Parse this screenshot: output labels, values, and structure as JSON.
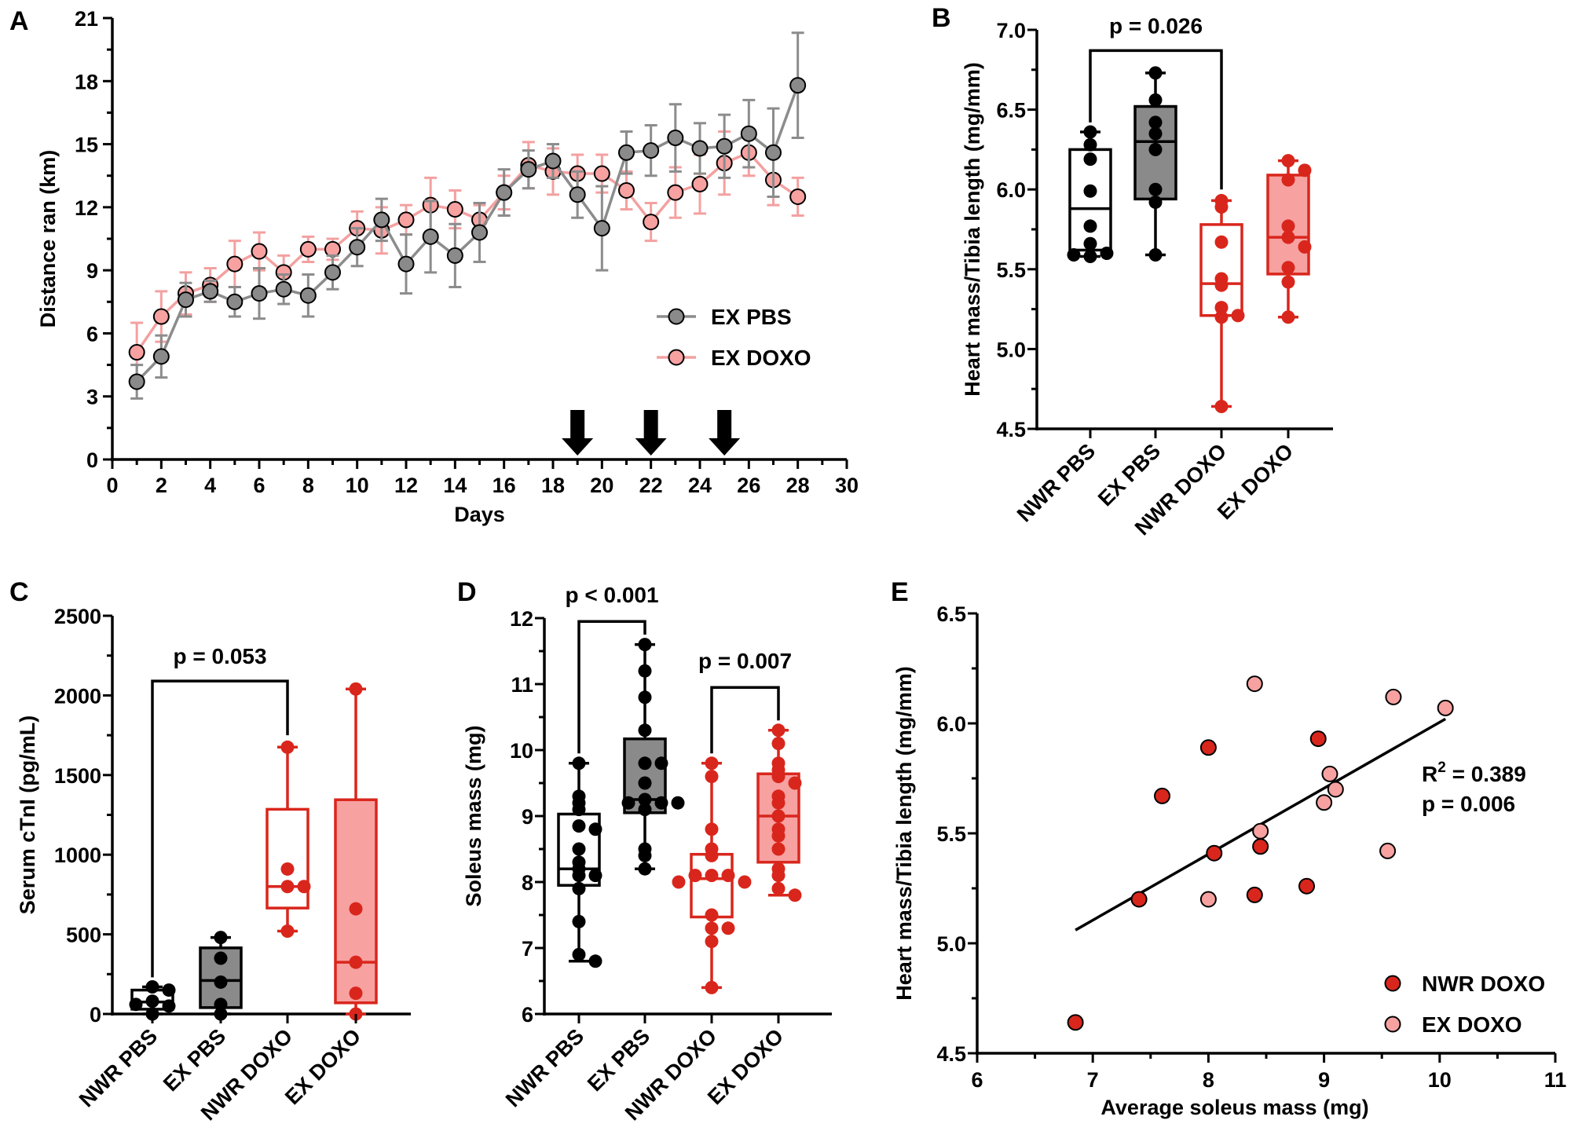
{
  "colors": {
    "black": "#000000",
    "gray": "#8a8a8a",
    "gray_line": "#8c8c8c",
    "pink": "#f7a1a1",
    "pink_line": "#f4a0a0",
    "red": "#d9261c"
  },
  "chart_data": [
    {
      "panel": "A",
      "type": "line",
      "xlabel": "Days",
      "ylabel": "Distance ran (km)",
      "xlim": [
        0,
        30
      ],
      "ylim": [
        0,
        21
      ],
      "xticks": [
        "0",
        "2",
        "4",
        "6",
        "8",
        "10",
        "12",
        "14",
        "16",
        "18",
        "20",
        "22",
        "24",
        "26",
        "28",
        "30"
      ],
      "yticks": [
        "0",
        "3",
        "6",
        "9",
        "12",
        "15",
        "18",
        "21"
      ],
      "legend": "right",
      "x": [
        1,
        2,
        3,
        4,
        5,
        6,
        7,
        8,
        9,
        10,
        11,
        12,
        13,
        14,
        15,
        16,
        17,
        18,
        19,
        20,
        21,
        22,
        23,
        24,
        25,
        26,
        27,
        28
      ],
      "series": [
        {
          "name": "EX PBS",
          "color": "#8a8a8a",
          "values": [
            3.7,
            4.9,
            7.6,
            8.0,
            7.5,
            7.9,
            8.1,
            7.8,
            8.9,
            10.1,
            11.4,
            9.3,
            10.6,
            9.7,
            10.8,
            12.7,
            13.8,
            14.2,
            12.6,
            11.0,
            14.6,
            14.7,
            15.3,
            14.8,
            14.9,
            15.5,
            14.6,
            17.8
          ],
          "errors": [
            0.8,
            1.0,
            0.8,
            0.5,
            0.7,
            1.2,
            0.7,
            1.0,
            0.8,
            0.9,
            1.0,
            1.4,
            1.7,
            1.5,
            1.4,
            1.1,
            0.9,
            0.8,
            1.1,
            2.0,
            1.0,
            1.2,
            1.6,
            1.2,
            1.5,
            1.6,
            2.1,
            2.5
          ]
        },
        {
          "name": "EX DOXO",
          "color": "#f7a1a1",
          "values": [
            5.1,
            6.8,
            7.9,
            8.3,
            9.3,
            9.9,
            8.9,
            10.0,
            10.0,
            11.0,
            10.9,
            11.4,
            12.1,
            11.9,
            11.4,
            12.7,
            14.0,
            13.7,
            13.6,
            13.6,
            12.8,
            11.3,
            12.7,
            13.1,
            14.1,
            14.6,
            13.3,
            12.5
          ],
          "errors": [
            1.4,
            1.2,
            1.0,
            0.8,
            1.1,
            0.9,
            0.8,
            0.6,
            0.5,
            0.8,
            1.1,
            0.7,
            1.3,
            0.9,
            0.7,
            0.8,
            1.1,
            1.1,
            0.9,
            0.9,
            0.9,
            0.9,
            1.2,
            1.4,
            1.5,
            1.1,
            1.2,
            0.9
          ]
        }
      ],
      "arrows_at_days": [
        19,
        22,
        25
      ]
    },
    {
      "panel": "B",
      "type": "box",
      "ylabel": "Heart mass/Tibia length (mg/mm)",
      "ylim": [
        4.5,
        7.0
      ],
      "yticks": [
        "4.5",
        "5.0",
        "5.5",
        "6.0",
        "6.5",
        "7.0"
      ],
      "categories": [
        "NWR PBS",
        "EX PBS",
        "NWR DOXO",
        "EX DOXO"
      ],
      "boxes": [
        {
          "min": 5.58,
          "q1": 5.62,
          "median": 5.88,
          "q3": 6.25,
          "max": 6.36,
          "points": [
            6.36,
            6.28,
            6.19,
            5.99,
            5.77,
            5.66,
            5.58,
            5.6,
            5.59
          ]
        },
        {
          "min": 5.59,
          "q1": 5.94,
          "median": 6.3,
          "q3": 6.52,
          "max": 6.73,
          "points": [
            6.73,
            6.56,
            6.42,
            6.35,
            6.25,
            6.0,
            5.92,
            5.59
          ]
        },
        {
          "min": 4.64,
          "q1": 5.21,
          "median": 5.41,
          "q3": 5.78,
          "max": 5.93,
          "points": [
            5.93,
            5.89,
            5.67,
            5.44,
            5.4,
            5.26,
            5.2,
            5.21,
            4.64
          ]
        },
        {
          "min": 5.2,
          "q1": 5.47,
          "median": 5.7,
          "q3": 6.09,
          "max": 6.18,
          "points": [
            6.18,
            6.12,
            6.06,
            5.77,
            5.7,
            5.64,
            5.51,
            5.42,
            5.2
          ]
        }
      ],
      "comparisons": [
        {
          "groups": [
            0,
            2
          ],
          "label": "p = 0.026"
        }
      ]
    },
    {
      "panel": "C",
      "type": "box",
      "ylabel": "Serum cTnI (pg/mL)",
      "ylim": [
        0,
        2500
      ],
      "yticks": [
        "0",
        "500",
        "1000",
        "1500",
        "2000",
        "2500"
      ],
      "categories": [
        "NWR PBS",
        "EX PBS",
        "NWR DOXO",
        "EX DOXO"
      ],
      "boxes": [
        {
          "min": 0,
          "q1": 30,
          "median": 75,
          "q3": 150,
          "max": 170,
          "points": [
            170,
            150,
            80,
            50,
            0,
            60
          ]
        },
        {
          "min": 0,
          "q1": 40,
          "median": 210,
          "q3": 415,
          "max": 480,
          "points": [
            480,
            350,
            200,
            60,
            0
          ]
        },
        {
          "min": 520,
          "q1": 665,
          "median": 800,
          "q3": 1285,
          "max": 1675,
          "points": [
            1675,
            910,
            800,
            800,
            520
          ]
        },
        {
          "min": 0,
          "q1": 70,
          "median": 325,
          "q3": 1345,
          "max": 2040,
          "points": [
            2040,
            660,
            325,
            130,
            0
          ]
        }
      ],
      "comparisons": [
        {
          "groups": [
            0,
            2
          ],
          "label": "p = 0.053"
        }
      ]
    },
    {
      "panel": "D",
      "type": "box",
      "ylabel": "Soleus mass (mg)",
      "ylim": [
        6,
        12
      ],
      "yticks": [
        "6",
        "7",
        "8",
        "9",
        "10",
        "11",
        "12"
      ],
      "categories": [
        "NWR PBS",
        "EX PBS",
        "NWR DOXO",
        "EX DOXO"
      ],
      "boxes": [
        {
          "min": 6.8,
          "q1": 7.95,
          "median": 8.2,
          "q3": 9.03,
          "max": 9.8,
          "points": [
            9.8,
            9.3,
            9.2,
            9.1,
            8.85,
            8.8,
            8.5,
            8.3,
            8.2,
            8.1,
            8.1,
            7.9,
            7.4,
            6.9,
            6.8
          ]
        },
        {
          "min": 8.2,
          "q1": 9.05,
          "median": 9.25,
          "q3": 10.17,
          "max": 11.6,
          "points": [
            11.6,
            11.2,
            10.8,
            10.3,
            9.8,
            9.8,
            9.5,
            9.25,
            9.2,
            9.2,
            9.2,
            9.1,
            8.5,
            8.4,
            8.2
          ]
        },
        {
          "min": 6.4,
          "q1": 7.47,
          "median": 8.05,
          "q3": 8.42,
          "max": 9.8,
          "points": [
            9.8,
            9.6,
            8.8,
            8.5,
            8.4,
            8.1,
            8.1,
            8.1,
            8.0,
            8.0,
            7.5,
            7.3,
            7.3,
            7.1,
            6.4
          ]
        },
        {
          "min": 7.8,
          "q1": 8.3,
          "median": 9.0,
          "q3": 9.64,
          "max": 10.3,
          "points": [
            10.3,
            10.1,
            9.8,
            9.7,
            9.6,
            9.5,
            9.3,
            9.2,
            9.0,
            8.8,
            8.7,
            8.5,
            8.2,
            8.1,
            7.9,
            7.8
          ]
        }
      ],
      "comparisons": [
        {
          "groups": [
            0,
            1
          ],
          "label": "p < 0.001"
        },
        {
          "groups": [
            2,
            3
          ],
          "label": "p = 0.007"
        }
      ]
    },
    {
      "panel": "E",
      "type": "scatter",
      "xlabel": "Average soleus mass (mg)",
      "ylabel": "Heart mass/Tibia length (mg/mm)",
      "xlim": [
        6,
        11
      ],
      "ylim": [
        4.5,
        6.5
      ],
      "xticks": [
        "6",
        "7",
        "8",
        "9",
        "10",
        "11"
      ],
      "yticks": [
        "4.5",
        "5.0",
        "5.5",
        "6.0",
        "6.5"
      ],
      "legend": "bottom-right",
      "series": [
        {
          "name": "NWR DOXO",
          "color": "#d9261c",
          "points": [
            [
              6.85,
              4.64
            ],
            [
              7.4,
              5.2
            ],
            [
              7.6,
              5.67
            ],
            [
              8.0,
              5.89
            ],
            [
              8.05,
              5.41
            ],
            [
              8.4,
              5.22
            ],
            [
              8.45,
              5.44
            ],
            [
              8.85,
              5.26
            ],
            [
              8.95,
              5.93
            ]
          ]
        },
        {
          "name": "EX DOXO",
          "color": "#f7a1a1",
          "points": [
            [
              8.0,
              5.2
            ],
            [
              8.4,
              6.18
            ],
            [
              8.45,
              5.51
            ],
            [
              9.0,
              5.64
            ],
            [
              9.05,
              5.77
            ],
            [
              9.1,
              5.7
            ],
            [
              9.55,
              5.42
            ],
            [
              9.6,
              6.12
            ],
            [
              10.05,
              6.07
            ]
          ]
        }
      ],
      "fit_line": [
        [
          6.85,
          5.06
        ],
        [
          10.05,
          6.02
        ]
      ],
      "annotation": {
        "r2_prefix": "R",
        "r2_sup": "2",
        "r2_value": " = 0.389",
        "p": "p = 0.006"
      }
    }
  ]
}
